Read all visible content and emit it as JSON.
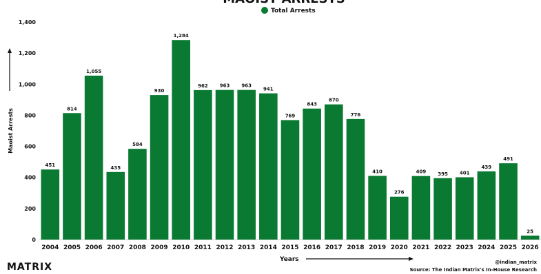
{
  "chart_data": {
    "type": "bar",
    "title": "MAOIST ARRESTS",
    "legend": [
      "Total Arrests"
    ],
    "legend_position": "top-center",
    "color": "#0a7a33",
    "xlabel": "Years",
    "ylabel": "Maoist Arrests",
    "ylim": [
      0,
      1400
    ],
    "yticks": [
      0,
      200,
      400,
      600,
      800,
      1000,
      1200,
      1400
    ],
    "ytick_labels": [
      "0",
      "200",
      "400",
      "600",
      "800",
      "1,000",
      "1,200",
      "1,400"
    ],
    "grid": false,
    "categories": [
      "2004",
      "2005",
      "2006",
      "2007",
      "2008",
      "2009",
      "2010",
      "2011",
      "2012",
      "2013",
      "2014",
      "2015",
      "2016",
      "2017",
      "2018",
      "2019",
      "2020",
      "2021",
      "2022",
      "2023",
      "2024",
      "2025",
      "2026"
    ],
    "series": [
      {
        "name": "Total Arrests",
        "values": [
          451,
          814,
          1055,
          435,
          584,
          930,
          1284,
          962,
          963,
          963,
          941,
          769,
          843,
          870,
          776,
          410,
          276,
          409,
          395,
          401,
          439,
          491,
          25
        ],
        "labels": [
          "451",
          "814",
          "1,055",
          "435",
          "584",
          "930",
          "1,284",
          "962",
          "963",
          "963",
          "941",
          "769",
          "843",
          "870",
          "776",
          "410",
          "276",
          "409",
          "395",
          "401",
          "439",
          "491",
          "25"
        ]
      }
    ]
  },
  "footer": {
    "logo": "MATRIX",
    "handle": "@indian_matrix",
    "source": "Source: The Indian Matrix's In-House Research"
  }
}
